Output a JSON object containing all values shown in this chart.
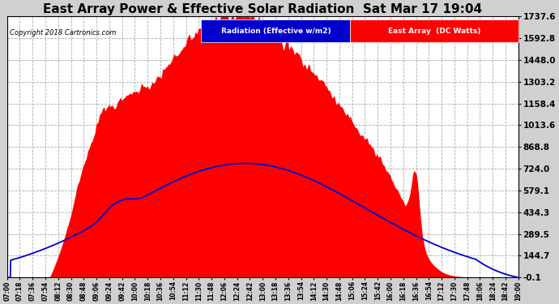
{
  "title": "East Array Power & Effective Solar Radiation  Sat Mar 17 19:04",
  "copyright": "Copyright 2018 Cartronics.com",
  "yticks": [
    -0.1,
    144.7,
    289.5,
    434.3,
    579.1,
    724.0,
    868.8,
    1013.6,
    1158.4,
    1303.2,
    1448.0,
    1592.8,
    1737.6
  ],
  "ylim": [
    -0.1,
    1737.6
  ],
  "background_color": "#d0d0d0",
  "plot_bg_color": "#ffffff",
  "legend_radiation_label": "Radiation (Effective w/m2)",
  "legend_east_label": "East Array  (DC Watts)",
  "legend_radiation_color": "#0000cc",
  "legend_east_color": "#ff0000",
  "grid_color": "#aaaaaa",
  "title_color": "black",
  "title_fontsize": 11,
  "xtick_labels": [
    "07:00",
    "07:18",
    "07:36",
    "07:54",
    "08:12",
    "08:30",
    "08:48",
    "09:06",
    "09:24",
    "09:42",
    "10:00",
    "10:18",
    "10:36",
    "10:54",
    "11:12",
    "11:30",
    "11:48",
    "12:06",
    "12:24",
    "12:42",
    "13:00",
    "13:18",
    "13:36",
    "13:54",
    "14:12",
    "14:30",
    "14:48",
    "15:06",
    "15:24",
    "15:42",
    "16:00",
    "16:18",
    "16:36",
    "16:54",
    "17:12",
    "17:30",
    "17:48",
    "18:06",
    "18:24",
    "18:42",
    "19:00"
  ]
}
